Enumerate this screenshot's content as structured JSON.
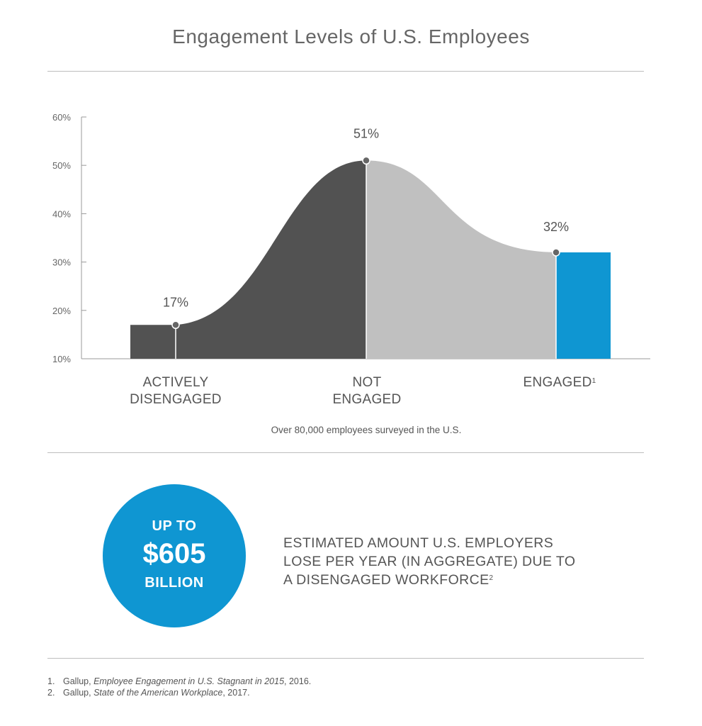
{
  "title": "Engagement Levels of U.S. Employees",
  "chart_data": {
    "type": "area",
    "yticks": [
      "60%",
      "50%",
      "40%",
      "30%",
      "20%",
      "10%"
    ],
    "ylim": [
      10,
      60
    ],
    "categories": [
      "ACTIVELY DISENGAGED",
      "NOT ENGAGED",
      "ENGAGED"
    ],
    "values": [
      17,
      51,
      32
    ],
    "value_labels": [
      "17%",
      "51%",
      "32%"
    ],
    "category_labels": [
      {
        "line1": "ACTIVELY",
        "line2": "DISENGAGED",
        "sup": ""
      },
      {
        "line1": "NOT",
        "line2": "ENGAGED",
        "sup": ""
      },
      {
        "line1": "ENGAGED",
        "line2": "",
        "sup": "1"
      }
    ],
    "colors": {
      "dark": "#525252",
      "light": "#c0c0c0",
      "blue": "#0f96d2",
      "axis": "#999999"
    }
  },
  "survey_note": "Over 80,000 employees surveyed in the U.S.",
  "callout": {
    "line1": "UP TO",
    "amount": "$605",
    "line3": "BILLION",
    "color": "#0f96d2"
  },
  "estimate": {
    "line1": "ESTIMATED AMOUNT U.S. EMPLOYERS",
    "line2": "LOSE PER YEAR (IN AGGREGATE) DUE TO",
    "line3": "A DISENGAGED WORKFORCE",
    "sup": "2"
  },
  "footnotes": [
    {
      "num": "1.",
      "source": "Gallup, ",
      "title": "Employee Engagement in U.S. Stagnant in 2015",
      "year": ", 2016."
    },
    {
      "num": "2.",
      "source": "Gallup, ",
      "title": "State of the American Workplace",
      "year": ", 2017."
    }
  ]
}
